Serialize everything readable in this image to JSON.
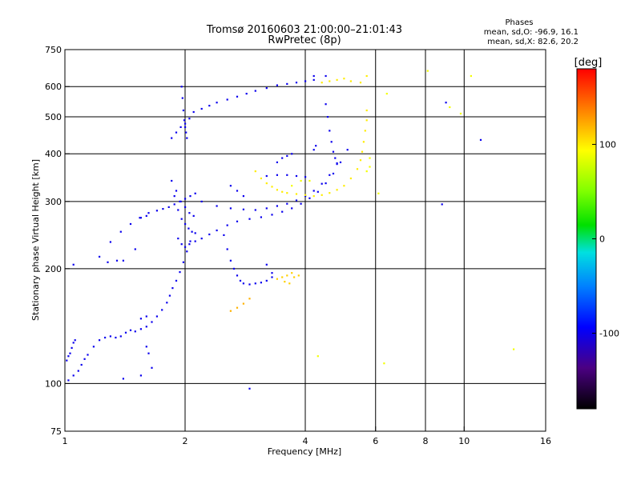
{
  "chart_data": {
    "type": "scatter",
    "title_line1": "Tromsø 20160603 21:00:00–21:01:43",
    "title_line2": "RwPretec (8p)",
    "xlabel": "Frequency [MHz]",
    "ylabel": "Stationary phase Virtual Height [km]",
    "x_scale": "log",
    "y_scale": "log",
    "xlim": [
      1,
      16
    ],
    "ylim": [
      75,
      750
    ],
    "x_ticks": [
      1,
      2,
      4,
      6,
      8,
      10,
      16
    ],
    "x_tick_labels": [
      "1",
      "2",
      "4",
      "6",
      "8",
      "10",
      "16"
    ],
    "y_ticks": [
      75,
      100,
      200,
      300,
      400,
      500,
      600,
      750
    ],
    "y_tick_labels": [
      "75",
      "100",
      "200",
      "300",
      "400",
      "500",
      "600",
      "750"
    ],
    "x_grid": [
      2,
      4,
      6,
      8,
      10
    ],
    "y_grid": [
      100,
      200,
      300,
      400,
      500,
      600
    ],
    "stats": {
      "heading": "Phases",
      "line_o": "mean, sd,O: -96.9, 16.1",
      "line_x": "mean, sd,X:  82.6, 20.2"
    },
    "colorbar": {
      "label": "[deg]",
      "range": [
        -180,
        180
      ],
      "ticks": [
        100,
        0,
        -100
      ],
      "tick_labels": [
        "100",
        "0",
        "-100"
      ]
    },
    "traces": [
      {
        "name": "o-low",
        "phase": -100,
        "points": [
          [
            1.02,
            102
          ],
          [
            1.05,
            105
          ],
          [
            1.08,
            108
          ],
          [
            1.1,
            112
          ],
          [
            1.12,
            116
          ],
          [
            1.14,
            119
          ],
          [
            1.18,
            125
          ],
          [
            1.22,
            130
          ],
          [
            1.26,
            132
          ],
          [
            1.3,
            133
          ],
          [
            1.34,
            132
          ],
          [
            1.38,
            133
          ],
          [
            1.42,
            136
          ],
          [
            1.46,
            138
          ],
          [
            1.5,
            137
          ],
          [
            1.55,
            139
          ],
          [
            1.6,
            141
          ],
          [
            1.65,
            145
          ],
          [
            1.7,
            150
          ],
          [
            1.75,
            156
          ],
          [
            1.8,
            163
          ],
          [
            1.83,
            170
          ],
          [
            1.86,
            178
          ],
          [
            1.9,
            186
          ],
          [
            1.94,
            196
          ],
          [
            1.98,
            208
          ],
          [
            2.02,
            222
          ],
          [
            2.06,
            236
          ]
        ]
      },
      {
        "name": "o-low-start",
        "phase": -100,
        "points": [
          [
            1.01,
            115
          ],
          [
            1.02,
            118
          ],
          [
            1.03,
            120
          ],
          [
            1.04,
            124
          ],
          [
            1.05,
            128
          ],
          [
            1.06,
            130
          ]
        ]
      },
      {
        "name": "o-e",
        "phase": -100,
        "points": [
          [
            1.22,
            215
          ],
          [
            1.3,
            235
          ],
          [
            1.38,
            250
          ],
          [
            1.46,
            262
          ],
          [
            1.54,
            272
          ],
          [
            1.62,
            280
          ],
          [
            1.7,
            284
          ],
          [
            1.76,
            287
          ],
          [
            1.82,
            290
          ],
          [
            1.88,
            295
          ],
          [
            1.94,
            300
          ],
          [
            2.0,
            305
          ],
          [
            2.06,
            310
          ],
          [
            2.12,
            315
          ]
        ]
      },
      {
        "name": "o-f-lower",
        "phase": -100,
        "points": [
          [
            1.92,
            240
          ],
          [
            1.96,
            232
          ],
          [
            2.0,
            228
          ],
          [
            2.05,
            232
          ],
          [
            2.12,
            236
          ],
          [
            2.2,
            240
          ],
          [
            2.3,
            246
          ],
          [
            2.4,
            252
          ],
          [
            2.55,
            260
          ],
          [
            2.7,
            266
          ],
          [
            2.9,
            270
          ],
          [
            3.1,
            273
          ],
          [
            3.3,
            277
          ],
          [
            3.5,
            282
          ],
          [
            3.7,
            288
          ],
          [
            3.9,
            296
          ],
          [
            4.1,
            306
          ],
          [
            4.3,
            318
          ],
          [
            4.5,
            335
          ],
          [
            4.7,
            355
          ],
          [
            4.9,
            380
          ],
          [
            5.1,
            410
          ]
        ]
      },
      {
        "name": "o-f-upper",
        "phase": -100,
        "points": [
          [
            2.2,
            300
          ],
          [
            2.4,
            292
          ],
          [
            2.6,
            288
          ],
          [
            2.8,
            286
          ],
          [
            3.0,
            285
          ],
          [
            3.2,
            288
          ],
          [
            3.4,
            292
          ],
          [
            3.6,
            296
          ],
          [
            3.8,
            302
          ],
          [
            4.0,
            310
          ],
          [
            4.2,
            320
          ],
          [
            4.4,
            334
          ],
          [
            4.6,
            352
          ],
          [
            4.8,
            376
          ]
        ]
      },
      {
        "name": "o-f-band",
        "phase": -100,
        "points": [
          [
            1.85,
            340
          ],
          [
            1.9,
            320
          ],
          [
            1.95,
            300
          ],
          [
            2.0,
            290
          ],
          [
            2.05,
            280
          ],
          [
            2.1,
            275
          ],
          [
            1.88,
            310
          ],
          [
            1.92,
            285
          ],
          [
            1.96,
            270
          ],
          [
            2.0,
            262
          ],
          [
            2.04,
            255
          ],
          [
            2.08,
            250
          ],
          [
            2.12,
            248
          ]
        ]
      },
      {
        "name": "o-f-top",
        "phase": -100,
        "points": [
          [
            1.85,
            440
          ],
          [
            1.9,
            455
          ],
          [
            1.95,
            470
          ],
          [
            2.0,
            480
          ],
          [
            2.05,
            495
          ],
          [
            2.1,
            515
          ],
          [
            2.2,
            525
          ],
          [
            2.3,
            535
          ],
          [
            2.4,
            545
          ],
          [
            2.55,
            555
          ],
          [
            2.7,
            565
          ],
          [
            2.85,
            575
          ],
          [
            3.0,
            585
          ],
          [
            3.2,
            595
          ],
          [
            3.4,
            605
          ],
          [
            3.6,
            610
          ],
          [
            3.8,
            615
          ],
          [
            4.0,
            620
          ],
          [
            4.2,
            625
          ]
        ]
      },
      {
        "name": "o-spike",
        "phase": -100,
        "points": [
          [
            1.96,
            600
          ],
          [
            1.97,
            560
          ],
          [
            1.98,
            520
          ],
          [
            1.99,
            490
          ],
          [
            2.0,
            470
          ],
          [
            2.01,
            455
          ],
          [
            2.02,
            440
          ]
        ]
      },
      {
        "name": "o-cusp",
        "phase": -100,
        "points": [
          [
            4.5,
            540
          ],
          [
            4.55,
            500
          ],
          [
            4.6,
            460
          ],
          [
            4.65,
            430
          ],
          [
            4.7,
            405
          ],
          [
            4.75,
            390
          ],
          [
            4.8,
            378
          ]
        ]
      },
      {
        "name": "o-mid",
        "phase": -100,
        "points": [
          [
            2.5,
            245
          ],
          [
            2.55,
            225
          ],
          [
            2.6,
            210
          ],
          [
            2.65,
            200
          ],
          [
            2.7,
            192
          ],
          [
            2.75,
            186
          ],
          [
            2.8,
            183
          ],
          [
            2.9,
            182
          ],
          [
            3.0,
            183
          ],
          [
            3.1,
            184
          ],
          [
            3.2,
            186
          ],
          [
            3.3,
            190
          ]
        ]
      },
      {
        "name": "o-mid2",
        "phase": -100,
        "points": [
          [
            3.2,
            350
          ],
          [
            3.4,
            352
          ],
          [
            3.6,
            352
          ],
          [
            3.8,
            350
          ],
          [
            4.0,
            348
          ]
        ]
      },
      {
        "name": "o-scatter",
        "phase": -100,
        "points": [
          [
            1.05,
            205
          ],
          [
            1.28,
            208
          ],
          [
            1.35,
            210
          ],
          [
            1.4,
            210
          ],
          [
            1.5,
            225
          ],
          [
            1.55,
            272
          ],
          [
            1.6,
            275
          ],
          [
            1.55,
            148
          ],
          [
            1.6,
            150
          ],
          [
            1.65,
            110
          ],
          [
            1.6,
            125
          ],
          [
            1.62,
            120
          ],
          [
            1.4,
            103
          ],
          [
            1.55,
            105
          ],
          [
            2.6,
            330
          ],
          [
            2.7,
            320
          ],
          [
            2.8,
            310
          ],
          [
            3.4,
            380
          ],
          [
            3.5,
            390
          ],
          [
            3.6,
            395
          ],
          [
            3.7,
            400
          ],
          [
            4.2,
            410
          ],
          [
            4.25,
            420
          ],
          [
            4.5,
            640
          ],
          [
            4.2,
            640
          ],
          [
            2.9,
            97
          ],
          [
            3.2,
            205
          ],
          [
            3.3,
            195
          ],
          [
            9.0,
            545
          ],
          [
            11.0,
            435
          ],
          [
            8.8,
            295
          ]
        ]
      },
      {
        "name": "x-f",
        "phase": 100,
        "points": [
          [
            3.0,
            360
          ],
          [
            3.1,
            345
          ],
          [
            3.2,
            335
          ],
          [
            3.3,
            328
          ],
          [
            3.4,
            322
          ],
          [
            3.5,
            318
          ],
          [
            3.6,
            316
          ],
          [
            3.8,
            314
          ],
          [
            4.0,
            312
          ],
          [
            4.2,
            310
          ],
          [
            4.4,
            312
          ],
          [
            4.6,
            316
          ],
          [
            4.8,
            322
          ],
          [
            5.0,
            330
          ],
          [
            5.2,
            345
          ],
          [
            5.4,
            365
          ],
          [
            5.5,
            385
          ],
          [
            5.55,
            405
          ],
          [
            5.6,
            430
          ],
          [
            5.65,
            460
          ],
          [
            5.7,
            490
          ],
          [
            5.7,
            520
          ]
        ]
      },
      {
        "name": "x-f2",
        "phase": 110,
        "points": [
          [
            3.4,
            188
          ],
          [
            3.5,
            190
          ],
          [
            3.6,
            192
          ],
          [
            3.7,
            195
          ],
          [
            3.55,
            185
          ],
          [
            3.65,
            183
          ],
          [
            3.75,
            190
          ],
          [
            3.85,
            192
          ]
        ]
      },
      {
        "name": "x-f3",
        "phase": 120,
        "points": [
          [
            2.6,
            155
          ],
          [
            2.7,
            158
          ],
          [
            2.8,
            162
          ],
          [
            2.9,
            167
          ]
        ]
      },
      {
        "name": "x-top",
        "phase": 100,
        "points": [
          [
            4.4,
            615
          ],
          [
            4.6,
            620
          ],
          [
            4.8,
            625
          ],
          [
            5.0,
            630
          ],
          [
            5.2,
            620
          ],
          [
            5.5,
            615
          ],
          [
            5.7,
            640
          ]
        ]
      },
      {
        "name": "x-scatter",
        "phase": 90,
        "points": [
          [
            5.8,
            390
          ],
          [
            5.8,
            370
          ],
          [
            5.7,
            360
          ],
          [
            6.1,
            315
          ],
          [
            6.4,
            575
          ],
          [
            8.1,
            660
          ],
          [
            10.4,
            640
          ],
          [
            4.3,
            118
          ],
          [
            6.3,
            113
          ],
          [
            9.2,
            530
          ],
          [
            9.8,
            510
          ],
          [
            13.3,
            123
          ],
          [
            3.7,
            330
          ],
          [
            3.9,
            340
          ],
          [
            4.1,
            340
          ]
        ]
      }
    ]
  }
}
